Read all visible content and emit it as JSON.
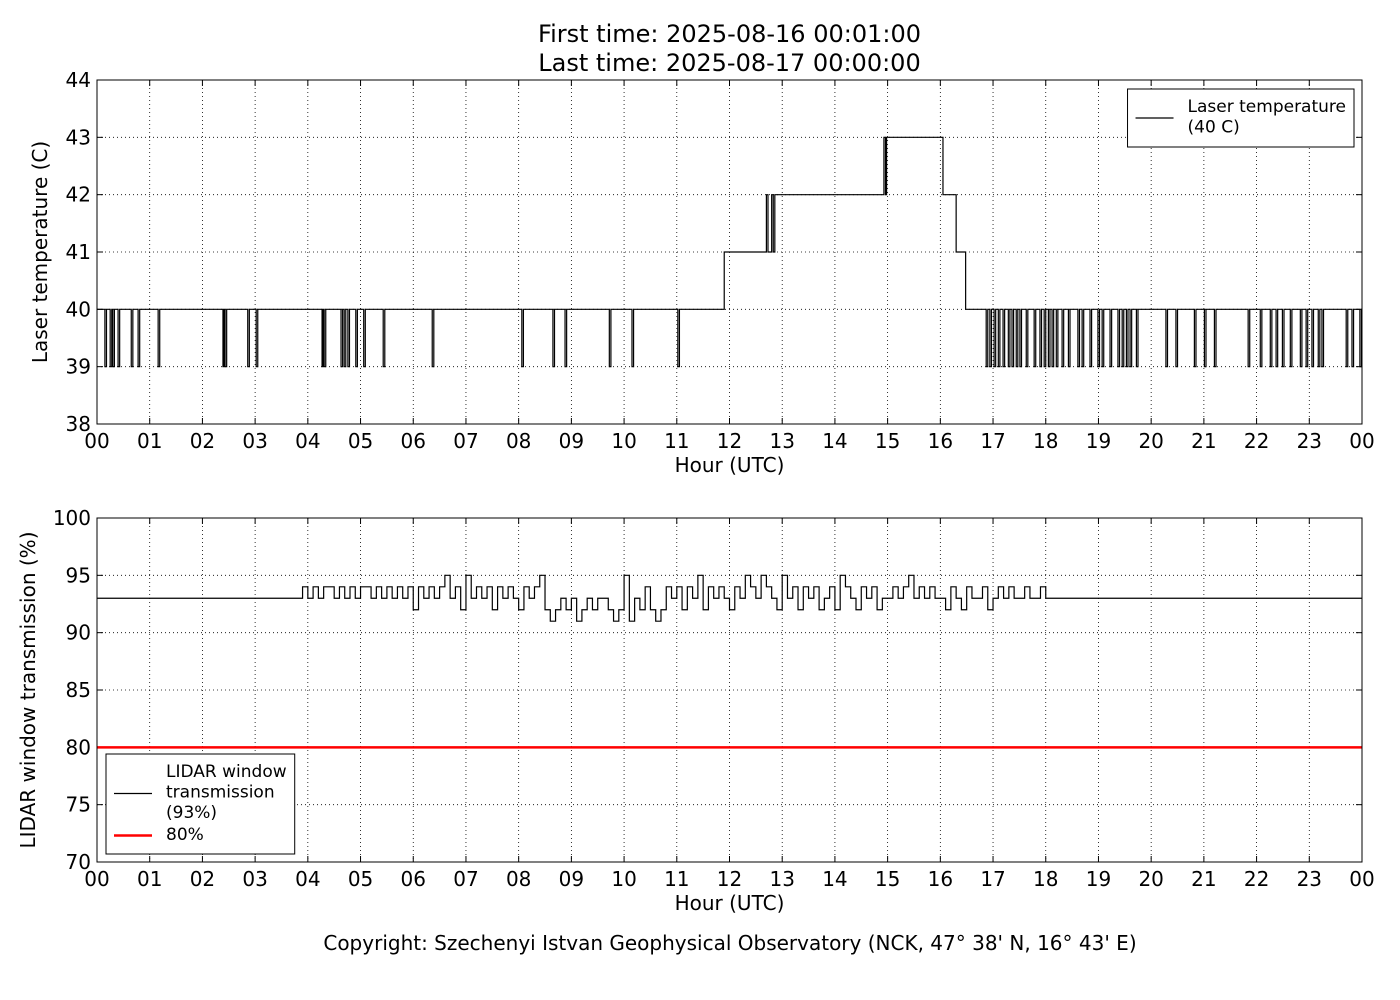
{
  "chart_data": [
    {
      "type": "line",
      "drawstyle": "steps-post",
      "title": "First time: 2025-08-16 00:01:00\nLast time: 2025-08-17 00:00:00",
      "xlabel": "Hour (UTC)",
      "ylabel": "Laser temperature (C)",
      "xlim": [
        0,
        24
      ],
      "xticks": [
        {
          "value": 0,
          "label": "00"
        },
        {
          "value": 1,
          "label": "01"
        },
        {
          "value": 2,
          "label": "02"
        },
        {
          "value": 3,
          "label": "03"
        },
        {
          "value": 4,
          "label": "04"
        },
        {
          "value": 5,
          "label": "05"
        },
        {
          "value": 6,
          "label": "06"
        },
        {
          "value": 7,
          "label": "07"
        },
        {
          "value": 8,
          "label": "08"
        },
        {
          "value": 9,
          "label": "09"
        },
        10,
        11,
        12,
        13,
        14,
        15,
        16,
        17,
        18,
        19,
        20,
        21,
        22,
        23,
        {
          "value": 24,
          "label": "00"
        }
      ],
      "ylim": [
        38,
        44
      ],
      "yticks": [
        38,
        39,
        40,
        41,
        42,
        43,
        44
      ],
      "grid": true,
      "legend": "upper right",
      "series": [
        {
          "name": "Laser temperature\n(40 C)",
          "color": "#000000",
          "x": [
            0,
            0.15,
            0.18,
            0.25,
            0.28,
            0.3,
            0.33,
            0.4,
            0.43,
            0.65,
            0.68,
            0.78,
            0.81,
            1.16,
            1.19,
            2.39,
            2.41,
            2.43,
            2.46,
            2.86,
            2.89,
            3.02,
            3.05,
            4.27,
            4.29,
            4.31,
            4.34,
            4.63,
            4.66,
            4.69,
            4.72,
            4.76,
            4.79,
            4.91,
            4.94,
            5.06,
            5.09,
            5.43,
            5.46,
            6.36,
            6.39,
            8.06,
            8.09,
            8.65,
            8.68,
            8.88,
            8.91,
            9.72,
            9.75,
            10.15,
            10.18,
            11.02,
            11.05,
            11.9,
            12.7,
            12.73,
            12.8,
            12.83,
            12.86,
            14.93,
            14.96,
            14.98,
            16.05,
            16.3,
            16.48,
            16.87,
            16.9,
            16.94,
            16.97,
            17.02,
            17.05,
            17.1,
            17.13,
            17.19,
            17.22,
            17.29,
            17.32,
            17.36,
            17.39,
            17.44,
            17.47,
            17.51,
            17.54,
            17.63,
            17.66,
            17.78,
            17.81,
            17.89,
            17.92,
            17.97,
            18.0,
            18.05,
            18.08,
            18.12,
            18.15,
            18.2,
            18.23,
            18.31,
            18.34,
            18.43,
            18.46,
            18.61,
            18.64,
            18.69,
            18.72,
            18.84,
            18.87,
            18.99,
            19.02,
            19.07,
            19.1,
            19.22,
            19.25,
            19.37,
            19.4,
            19.45,
            19.48,
            19.53,
            19.56,
            19.6,
            19.63,
            19.72,
            19.75,
            20.28,
            20.31,
            20.47,
            20.5,
            20.82,
            20.85,
            21.01,
            21.04,
            21.2,
            21.23,
            21.84,
            21.87,
            22.07,
            22.1,
            22.26,
            22.29,
            22.37,
            22.4,
            22.49,
            22.52,
            22.64,
            22.67,
            22.83,
            22.86,
            22.94,
            22.97,
            23.05,
            23.08,
            23.17,
            23.2,
            23.24,
            23.27,
            23.7,
            23.73,
            23.81,
            23.84,
            23.96,
            23.99,
            24
          ],
          "values": [
            40,
            39,
            40,
            39,
            40,
            39,
            40,
            39,
            40,
            39,
            40,
            39,
            40,
            39,
            40,
            39,
            40,
            39,
            40,
            39,
            40,
            39,
            40,
            39,
            40,
            39,
            40,
            39,
            40,
            39,
            40,
            39,
            40,
            39,
            40,
            39,
            40,
            39,
            40,
            39,
            40,
            39,
            40,
            39,
            40,
            39,
            40,
            39,
            40,
            39,
            40,
            39,
            40,
            41,
            42,
            41,
            42,
            41,
            42,
            43,
            42,
            43,
            42,
            41,
            40,
            39,
            40,
            39,
            40,
            39,
            40,
            39,
            40,
            39,
            40,
            39,
            40,
            39,
            40,
            39,
            40,
            39,
            40,
            39,
            40,
            39,
            40,
            39,
            40,
            39,
            40,
            39,
            40,
            39,
            40,
            39,
            40,
            39,
            40,
            39,
            40,
            39,
            40,
            39,
            40,
            39,
            40,
            39,
            40,
            39,
            40,
            39,
            40,
            39,
            40,
            39,
            40,
            39,
            40,
            39,
            40,
            39,
            40,
            39,
            40,
            39,
            40,
            39,
            40,
            39,
            40,
            39,
            40,
            39,
            40,
            39,
            40,
            39,
            40,
            39,
            40,
            39,
            40,
            39,
            40,
            39,
            40,
            39,
            40,
            39,
            40,
            39,
            40,
            39,
            40,
            39,
            40,
            39,
            40,
            39,
            40,
            40
          ]
        }
      ]
    },
    {
      "type": "line",
      "drawstyle": "steps-post",
      "xlabel": "Hour (UTC)",
      "ylabel": "LIDAR window transmission (%)",
      "xlim": [
        0,
        24
      ],
      "xticks": [
        {
          "value": 0,
          "label": "00"
        },
        {
          "value": 1,
          "label": "01"
        },
        {
          "value": 2,
          "label": "02"
        },
        {
          "value": 3,
          "label": "03"
        },
        {
          "value": 4,
          "label": "04"
        },
        {
          "value": 5,
          "label": "05"
        },
        {
          "value": 6,
          "label": "06"
        },
        {
          "value": 7,
          "label": "07"
        },
        {
          "value": 8,
          "label": "08"
        },
        {
          "value": 9,
          "label": "09"
        },
        10,
        11,
        12,
        13,
        14,
        15,
        16,
        17,
        18,
        19,
        20,
        21,
        22,
        23,
        {
          "value": 24,
          "label": "00"
        }
      ],
      "ylim": [
        70,
        100
      ],
      "yticks": [
        70,
        75,
        80,
        85,
        90,
        95,
        100
      ],
      "grid": true,
      "legend": "lower left",
      "series": [
        {
          "name": "LIDAR window\ntransmission\n(93%)",
          "color": "#000000",
          "x": [
            0,
            3.9,
            4.0,
            4.1,
            4.2,
            4.3,
            4.4,
            4.5,
            4.6,
            4.7,
            4.8,
            4.9,
            5.0,
            5.1,
            5.2,
            5.3,
            5.4,
            5.5,
            5.6,
            5.7,
            5.8,
            5.9,
            6.0,
            6.1,
            6.2,
            6.3,
            6.4,
            6.5,
            6.6,
            6.7,
            6.8,
            6.9,
            7.0,
            7.1,
            7.2,
            7.3,
            7.4,
            7.5,
            7.6,
            7.7,
            7.8,
            7.9,
            8.0,
            8.1,
            8.2,
            8.3,
            8.4,
            8.5,
            8.6,
            8.7,
            8.8,
            8.9,
            9.0,
            9.1,
            9.2,
            9.3,
            9.4,
            9.5,
            9.6,
            9.7,
            9.8,
            9.9,
            10.0,
            10.1,
            10.2,
            10.3,
            10.4,
            10.5,
            10.6,
            10.7,
            10.8,
            10.9,
            11.0,
            11.1,
            11.2,
            11.3,
            11.4,
            11.5,
            11.6,
            11.7,
            11.8,
            11.9,
            12.0,
            12.1,
            12.2,
            12.3,
            12.4,
            12.5,
            12.6,
            12.7,
            12.8,
            12.9,
            13.0,
            13.1,
            13.2,
            13.3,
            13.4,
            13.5,
            13.6,
            13.7,
            13.8,
            13.9,
            14.0,
            14.1,
            14.2,
            14.3,
            14.4,
            14.5,
            14.6,
            14.7,
            14.8,
            14.9,
            15.0,
            15.1,
            15.2,
            15.3,
            15.4,
            15.5,
            15.6,
            15.7,
            15.8,
            15.9,
            16.0,
            16.1,
            16.2,
            16.3,
            16.4,
            16.5,
            16.6,
            16.7,
            16.8,
            16.9,
            17.0,
            17.1,
            17.2,
            17.3,
            17.4,
            17.5,
            17.6,
            17.7,
            17.8,
            17.9,
            18.0,
            24
          ],
          "values": [
            93,
            94,
            93,
            94,
            93,
            94,
            94,
            93,
            94,
            93,
            94,
            93,
            94,
            94,
            93,
            94,
            93,
            94,
            93,
            94,
            93,
            94,
            92,
            94,
            93,
            94,
            93,
            94,
            95,
            93,
            94,
            92,
            95,
            93,
            94,
            93,
            94,
            92,
            94,
            93,
            94,
            93,
            92,
            94,
            93,
            94,
            95,
            92,
            91,
            92,
            93,
            92,
            93,
            91,
            92,
            93,
            92,
            93,
            93,
            92,
            91,
            92,
            95,
            91,
            93,
            92,
            94,
            92,
            91,
            92,
            94,
            93,
            94,
            92,
            94,
            93,
            95,
            92,
            94,
            93,
            94,
            93,
            92,
            94,
            93,
            95,
            94,
            93,
            95,
            94,
            93,
            92,
            95,
            93,
            94,
            92,
            94,
            93,
            94,
            92,
            93,
            94,
            92,
            95,
            94,
            93,
            92,
            94,
            93,
            94,
            92,
            93,
            93,
            94,
            93,
            94,
            95,
            93,
            94,
            93,
            94,
            93,
            93,
            92,
            94,
            93,
            92,
            94,
            93,
            93,
            94,
            92,
            93,
            94,
            93,
            94,
            93,
            93,
            94,
            93,
            93,
            94,
            93,
            93
          ]
        },
        {
          "name": "80%",
          "color": "#ff0000",
          "linewidth": 2.5,
          "x": [
            0,
            24
          ],
          "values": [
            80,
            80
          ]
        }
      ]
    }
  ],
  "footer": "Copyright: Szechenyi Istvan Geophysical Observatory (NCK, 47° 38' N, 16° 43' E)"
}
